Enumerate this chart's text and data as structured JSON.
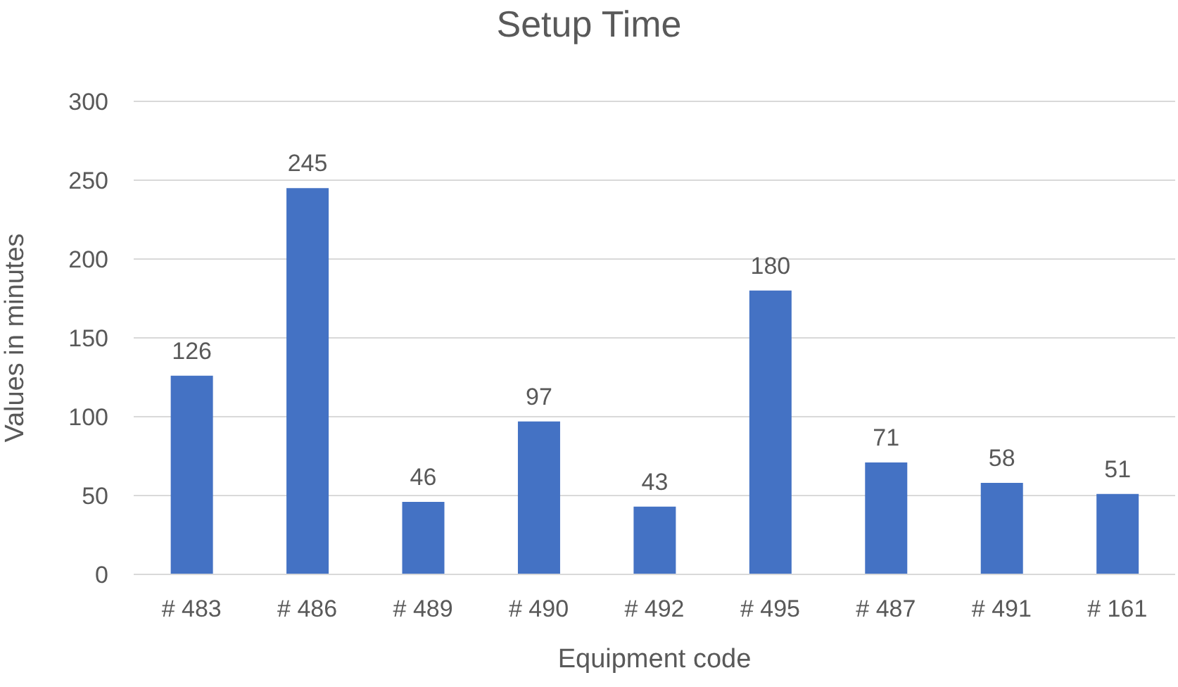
{
  "chart_data": {
    "type": "bar",
    "title": "Setup Time",
    "xlabel": "Equipment code",
    "ylabel": "Values in minutes",
    "categories": [
      "# 483",
      "# 486",
      "# 489",
      "# 490",
      "# 492",
      "# 495",
      "# 487",
      "# 491",
      "# 161"
    ],
    "values": [
      126,
      245,
      46,
      97,
      43,
      180,
      71,
      58,
      51
    ],
    "color": "#4472c4",
    "ylim": [
      0,
      300
    ],
    "yticks": [
      0,
      50,
      100,
      150,
      200,
      250,
      300
    ],
    "grid": "y",
    "data_labels": true
  }
}
